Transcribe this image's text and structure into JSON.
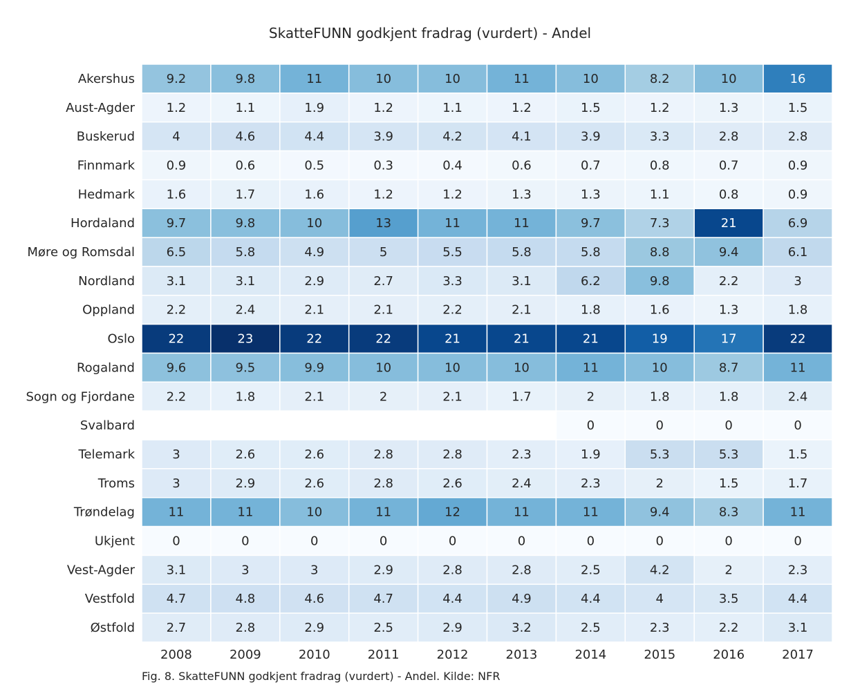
{
  "chart_data": {
    "type": "heatmap",
    "title": "SkatteFUNN godkjent fradrag (vurdert) - Andel",
    "caption": "Fig. 8. SkatteFUNN godkjent fradrag (vurdert) - Andel. Kilde: NFR",
    "xlabel": "",
    "ylabel": "",
    "colormap": "Blues",
    "vmin": 0,
    "vmax": 23,
    "columns": [
      "2008",
      "2009",
      "2010",
      "2011",
      "2012",
      "2013",
      "2014",
      "2015",
      "2016",
      "2017"
    ],
    "rows": [
      {
        "label": "Akershus",
        "values": [
          "9.2",
          "9.8",
          "11",
          "10",
          "10",
          "11",
          "10",
          "8.2",
          "10",
          "16"
        ]
      },
      {
        "label": "Aust-Agder",
        "values": [
          "1.2",
          "1.1",
          "1.9",
          "1.2",
          "1.1",
          "1.2",
          "1.5",
          "1.2",
          "1.3",
          "1.5"
        ]
      },
      {
        "label": "Buskerud",
        "values": [
          "4",
          "4.6",
          "4.4",
          "3.9",
          "4.2",
          "4.1",
          "3.9",
          "3.3",
          "2.8",
          "2.8"
        ]
      },
      {
        "label": "Finnmark",
        "values": [
          "0.9",
          "0.6",
          "0.5",
          "0.3",
          "0.4",
          "0.6",
          "0.7",
          "0.8",
          "0.7",
          "0.9"
        ]
      },
      {
        "label": "Hedmark",
        "values": [
          "1.6",
          "1.7",
          "1.6",
          "1.2",
          "1.2",
          "1.3",
          "1.3",
          "1.1",
          "0.8",
          "0.9"
        ]
      },
      {
        "label": "Hordaland",
        "values": [
          "9.7",
          "9.8",
          "10",
          "13",
          "11",
          "11",
          "9.7",
          "7.3",
          "21",
          "6.9"
        ]
      },
      {
        "label": "Møre og Romsdal",
        "values": [
          "6.5",
          "5.8",
          "4.9",
          "5",
          "5.5",
          "5.8",
          "5.8",
          "8.8",
          "9.4",
          "6.1"
        ]
      },
      {
        "label": "Nordland",
        "values": [
          "3.1",
          "3.1",
          "2.9",
          "2.7",
          "3.3",
          "3.1",
          "6.2",
          "9.8",
          "2.2",
          "3"
        ]
      },
      {
        "label": "Oppland",
        "values": [
          "2.2",
          "2.4",
          "2.1",
          "2.1",
          "2.2",
          "2.1",
          "1.8",
          "1.6",
          "1.3",
          "1.8"
        ]
      },
      {
        "label": "Oslo",
        "values": [
          "22",
          "23",
          "22",
          "22",
          "21",
          "21",
          "21",
          "19",
          "17",
          "22"
        ]
      },
      {
        "label": "Rogaland",
        "values": [
          "9.6",
          "9.5",
          "9.9",
          "10",
          "10",
          "10",
          "11",
          "10",
          "8.7",
          "11"
        ]
      },
      {
        "label": "Sogn og Fjordane",
        "values": [
          "2.2",
          "1.8",
          "2.1",
          "2",
          "2.1",
          "1.7",
          "2",
          "1.8",
          "1.8",
          "2.4"
        ]
      },
      {
        "label": "Svalbard",
        "values": [
          null,
          null,
          null,
          null,
          null,
          null,
          "0",
          "0",
          "0",
          "0"
        ]
      },
      {
        "label": "Telemark",
        "values": [
          "3",
          "2.6",
          "2.6",
          "2.8",
          "2.8",
          "2.3",
          "1.9",
          "5.3",
          "5.3",
          "1.5"
        ]
      },
      {
        "label": "Troms",
        "values": [
          "3",
          "2.9",
          "2.6",
          "2.8",
          "2.6",
          "2.4",
          "2.3",
          "2",
          "1.5",
          "1.7"
        ]
      },
      {
        "label": "Trøndelag",
        "values": [
          "11",
          "11",
          "10",
          "11",
          "12",
          "11",
          "11",
          "9.4",
          "8.3",
          "11"
        ]
      },
      {
        "label": "Ukjent",
        "values": [
          "0",
          "0",
          "0",
          "0",
          "0",
          "0",
          "0",
          "0",
          "0",
          "0"
        ]
      },
      {
        "label": "Vest-Agder",
        "values": [
          "3.1",
          "3",
          "3",
          "2.9",
          "2.8",
          "2.8",
          "2.5",
          "4.2",
          "2",
          "2.3"
        ]
      },
      {
        "label": "Vestfold",
        "values": [
          "4.7",
          "4.8",
          "4.6",
          "4.7",
          "4.4",
          "4.9",
          "4.4",
          "4",
          "3.5",
          "4.4"
        ]
      },
      {
        "label": "Østfold",
        "values": [
          "2.7",
          "2.8",
          "2.9",
          "2.5",
          "2.9",
          "3.2",
          "2.5",
          "2.3",
          "2.2",
          "3.1"
        ]
      }
    ]
  }
}
